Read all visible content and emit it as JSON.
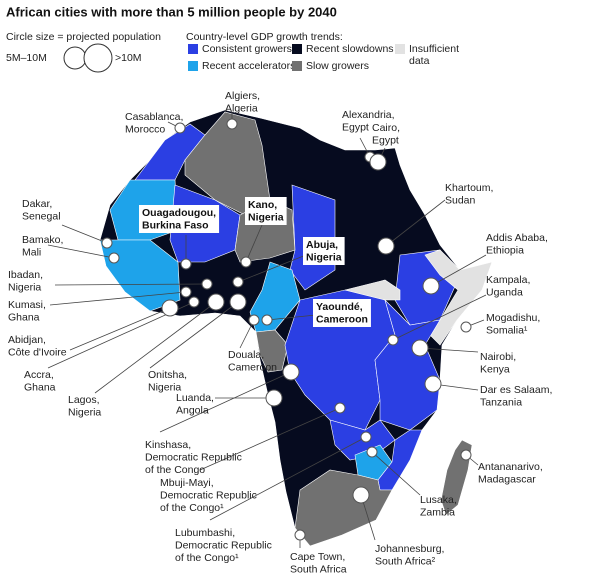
{
  "title": "African cities with more than 5 million people by 2040",
  "size_legend": {
    "title": "Circle size = projected population",
    "items": [
      {
        "label": "5M–10M",
        "size": "small"
      },
      {
        "label": ">10M",
        "size": "large"
      }
    ]
  },
  "color_legend": {
    "title": "Country-level GDP growth trends:",
    "items": [
      {
        "label": [
          "Consistent growers"
        ],
        "color": "#2b3fe3"
      },
      {
        "label": [
          "Recent accelerators"
        ],
        "color": "#1ea3ea"
      },
      {
        "label": [
          "Recent slowdowns"
        ],
        "color": "#060b1f"
      },
      {
        "label": [
          "Slow growers"
        ],
        "color": "#717171"
      },
      {
        "label": [
          "Insufficient",
          "data"
        ],
        "color": "#e2e2e2"
      }
    ]
  },
  "cities": [
    {
      "label": [
        "Algiers,",
        "Algeria"
      ],
      "size": "small"
    },
    {
      "label": [
        "Casablanca,",
        "Morocco"
      ],
      "size": "small"
    },
    {
      "label": [
        "Alexandria,",
        "Egypt"
      ],
      "size": "small"
    },
    {
      "label": [
        "Cairo,",
        "Egypt"
      ],
      "size": "large"
    },
    {
      "label": [
        "Dakar,",
        "Senegal"
      ],
      "size": "small"
    },
    {
      "label": [
        "Ouagadougou,",
        "Burkina Faso"
      ],
      "size": "small",
      "boxed": true
    },
    {
      "label": [
        "Kano,",
        "Nigeria"
      ],
      "size": "small",
      "boxed": true
    },
    {
      "label": [
        "Khartoum,",
        "Sudan"
      ],
      "size": "large"
    },
    {
      "label": [
        "Bamako,",
        "Mali"
      ],
      "size": "small"
    },
    {
      "label": [
        "Abuja,",
        "Nigeria"
      ],
      "size": "small",
      "boxed": true
    },
    {
      "label": [
        "Addis Ababa,",
        "Ethiopia"
      ],
      "size": "large"
    },
    {
      "label": [
        "Ibadan,",
        "Nigeria"
      ],
      "size": "small"
    },
    {
      "label": [
        "Kampala,",
        "Uganda"
      ],
      "size": "small"
    },
    {
      "label": [
        "Kumasi,",
        "Ghana"
      ],
      "size": "small"
    },
    {
      "label": [
        "Abidjan,",
        "Côte d'Ivoire"
      ],
      "size": "large"
    },
    {
      "label": [
        "Yaoundé,",
        "Cameroon"
      ],
      "size": "small",
      "boxed": true
    },
    {
      "label": [
        "Mogadishu,",
        "Somalia¹"
      ],
      "size": "small"
    },
    {
      "label": [
        "Accra,",
        "Ghana"
      ],
      "size": "small"
    },
    {
      "label": [
        "Nairobi,",
        "Kenya"
      ],
      "size": "large"
    },
    {
      "label": [
        "Douala,",
        "Cameroon"
      ],
      "size": "small"
    },
    {
      "label": [
        "Lagos,",
        "Nigeria"
      ],
      "size": "large"
    },
    {
      "label": [
        "Onitsha,",
        "Nigeria"
      ],
      "size": "large"
    },
    {
      "label": [
        "Luanda,",
        "Angola"
      ],
      "size": "large"
    },
    {
      "label": [
        "Kinshasa,",
        "Democratic Republic",
        "of the Congo"
      ],
      "size": "large"
    },
    {
      "label": [
        "Dar es Salaam,",
        "Tanzania"
      ],
      "size": "large"
    },
    {
      "label": [
        "Mbuji-Mayi,",
        "Democratic Republic",
        "of the Congo¹"
      ],
      "size": "small"
    },
    {
      "label": [
        "Lubumbashi,",
        "Democratic Republic",
        "of the Congo¹"
      ],
      "size": "small"
    },
    {
      "label": [
        "Lusaka,",
        "Zambia"
      ],
      "size": "small"
    },
    {
      "label": [
        "Antananarivo,",
        "Madagascar"
      ],
      "size": "small"
    },
    {
      "label": [
        "Johannesburg,",
        "South Africa²"
      ],
      "size": "large"
    },
    {
      "label": [
        "Cape Town,",
        "South Africa"
      ],
      "size": "small"
    }
  ]
}
